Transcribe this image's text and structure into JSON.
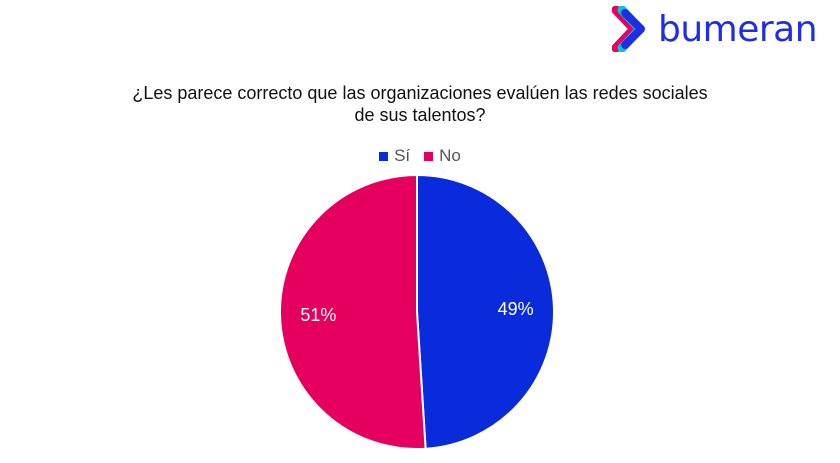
{
  "logo": {
    "text": "bumeran",
    "colors": [
      "#e5005f",
      "#00c8d2",
      "#1f2ee6"
    ]
  },
  "chart_data": {
    "type": "pie",
    "title": "¿Les parece correcto que las organizaciones evalúen las redes sociales de sus talentos?",
    "title_lines": [
      "¿Les parece correcto que las organizaciones evalúen las redes sociales",
      "de sus talentos?"
    ],
    "categories": [
      "Sí",
      "No"
    ],
    "values": [
      49,
      51
    ],
    "labels": [
      "49%",
      "51%"
    ],
    "colors": [
      "#0a2bdb",
      "#e5005f"
    ],
    "legend": "top"
  }
}
